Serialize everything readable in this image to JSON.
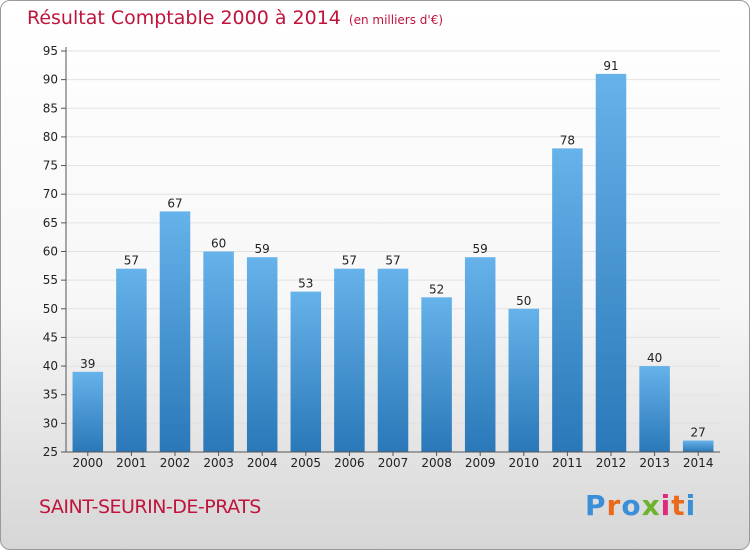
{
  "title": "Résultat Comptable 2000 à 2014",
  "subtitle": "(en milliers d'€)",
  "commune": "SAINT-SEURIN-DE-PRATS",
  "brand": "Proxiti",
  "colors": {
    "title": "#c0143c",
    "bar_light": "#66b2ea",
    "bar_dark": "#2a78b8",
    "grid": "#e2e2e2"
  },
  "chart_data": {
    "type": "bar",
    "title": "Résultat Comptable 2000 à 2014",
    "subtitle": "(en milliers d'€)",
    "xlabel": "",
    "ylabel": "",
    "categories": [
      "2000",
      "2001",
      "2002",
      "2003",
      "2004",
      "2005",
      "2006",
      "2007",
      "2008",
      "2009",
      "2010",
      "2011",
      "2012",
      "2013",
      "2014"
    ],
    "values": [
      39,
      57,
      67,
      60,
      59,
      53,
      57,
      57,
      52,
      59,
      50,
      78,
      91,
      40,
      27
    ],
    "ylim": [
      25,
      95
    ],
    "yticks": [
      25,
      30,
      35,
      40,
      45,
      50,
      55,
      60,
      65,
      70,
      75,
      80,
      85,
      90,
      95
    ],
    "grid": true,
    "legend": "none"
  }
}
